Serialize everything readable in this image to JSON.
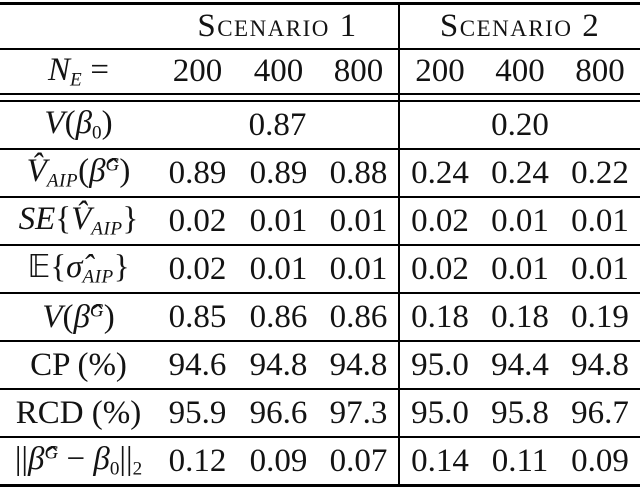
{
  "table": {
    "group_headers": [
      {
        "label": "Scenario 1"
      },
      {
        "label": "Scenario 2"
      }
    ],
    "size_row": {
      "label": [
        {
          "t": "N",
          "k": "it"
        },
        {
          "t": "E",
          "k": "sub"
        },
        {
          "t": " = ",
          "k": "rm"
        }
      ],
      "values": [
        "200",
        "400",
        "800",
        "200",
        "400",
        "800"
      ]
    },
    "rows": [
      {
        "name": "true-variance",
        "type": "merged",
        "label": [
          {
            "t": "V",
            "k": "it"
          },
          {
            "t": "(",
            "k": "rm"
          },
          {
            "t": "β",
            "k": "it"
          },
          {
            "t": "0",
            "k": "subrm"
          },
          {
            "t": ")",
            "k": "rm"
          }
        ],
        "values": [
          "0.87",
          "0.20"
        ]
      },
      {
        "name": "vaip-estimate",
        "type": "values",
        "label": [
          {
            "t": "V̂",
            "k": "it"
          },
          {
            "t": "AIP",
            "k": "sub"
          },
          {
            "t": "(",
            "k": "rm"
          },
          {
            "t": "β̂",
            "k": "it"
          },
          {
            "t": "G",
            "k": "sup"
          },
          {
            "t": ")",
            "k": "rm"
          }
        ],
        "values": [
          "0.89",
          "0.89",
          "0.88",
          "0.24",
          "0.24",
          "0.22"
        ]
      },
      {
        "name": "se-vaip",
        "type": "values",
        "label": [
          {
            "t": "SE",
            "k": "it"
          },
          {
            "t": "{",
            "k": "rm"
          },
          {
            "t": "V̂",
            "k": "it"
          },
          {
            "t": "AIP",
            "k": "sub"
          },
          {
            "t": "}",
            "k": "rm"
          }
        ],
        "values": [
          "0.02",
          "0.01",
          "0.01",
          "0.02",
          "0.01",
          "0.01"
        ]
      },
      {
        "name": "expected-sigma-aip",
        "type": "values",
        "label": [
          {
            "t": "𝔼",
            "k": "bb"
          },
          {
            "t": "{",
            "k": "rm"
          },
          {
            "t": "σ̂",
            "k": "it"
          },
          {
            "t": "AIP",
            "k": "sub"
          },
          {
            "t": "}",
            "k": "rm"
          }
        ],
        "values": [
          "0.02",
          "0.01",
          "0.01",
          "0.02",
          "0.01",
          "0.01"
        ]
      },
      {
        "name": "v-beta-g",
        "type": "values",
        "label": [
          {
            "t": "V",
            "k": "it"
          },
          {
            "t": "(",
            "k": "rm"
          },
          {
            "t": "β̂",
            "k": "it"
          },
          {
            "t": "G",
            "k": "sup"
          },
          {
            "t": ")",
            "k": "rm"
          }
        ],
        "values": [
          "0.85",
          "0.86",
          "0.86",
          "0.18",
          "0.18",
          "0.19"
        ]
      },
      {
        "name": "coverage-probability",
        "type": "values",
        "label": [
          {
            "t": "CP (%)",
            "k": "rm"
          }
        ],
        "values": [
          "94.6",
          "94.8",
          "94.8",
          "95.0",
          "94.4",
          "94.8"
        ]
      },
      {
        "name": "rcd",
        "type": "values",
        "label": [
          {
            "t": "RCD (%)",
            "k": "rm"
          }
        ],
        "values": [
          "95.9",
          "96.6",
          "97.3",
          "95.0",
          "95.8",
          "96.7"
        ]
      },
      {
        "name": "l2-norm-error",
        "type": "values",
        "label": [
          {
            "t": "||",
            "k": "rm"
          },
          {
            "t": "β̂",
            "k": "it"
          },
          {
            "t": "G",
            "k": "sup"
          },
          {
            "t": " − ",
            "k": "rm"
          },
          {
            "t": "β",
            "k": "it"
          },
          {
            "t": "0",
            "k": "subrm"
          },
          {
            "t": "||",
            "k": "rm"
          },
          {
            "t": "2",
            "k": "subrm"
          }
        ],
        "values": [
          "0.12",
          "0.09",
          "0.07",
          "0.14",
          "0.11",
          "0.09"
        ]
      }
    ]
  }
}
